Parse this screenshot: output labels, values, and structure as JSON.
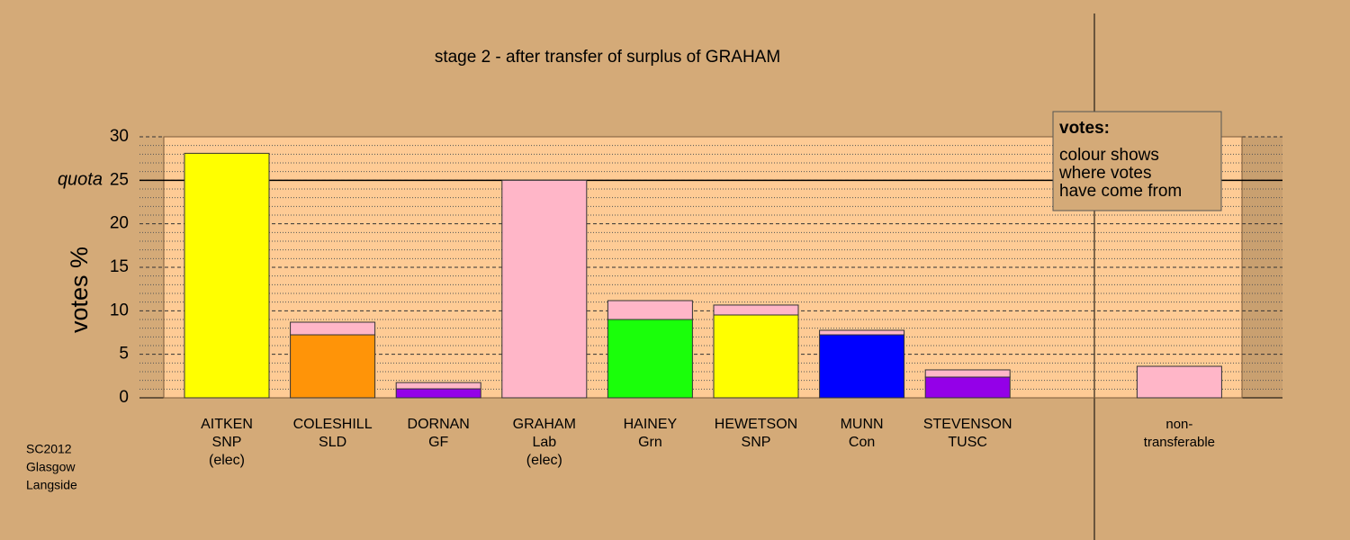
{
  "chart_data": {
    "type": "bar",
    "stacked": true,
    "title": "stage 2 - after transfer of surplus of GRAHAM",
    "y_label": "votes %",
    "categories": [
      [
        "AITKEN",
        "SNP",
        "(elec)"
      ],
      [
        "COLESHILL",
        "SLD"
      ],
      [
        "DORNAN",
        "GF"
      ],
      [
        "GRAHAM",
        "Lab",
        "(elec)"
      ],
      [
        "HAINEY",
        "Grn"
      ],
      [
        "HEWETSON",
        "SNP"
      ],
      [
        "MUNN",
        "Con"
      ],
      [
        "STEVENSON",
        "TUSC"
      ],
      null,
      [
        "non-",
        "transferable"
      ]
    ],
    "series": [
      {
        "colors": [
          "#ffff00",
          "#ff9408",
          "#9400e8",
          "#ffb6c8",
          "#1aff0a",
          "#ffff00",
          "#0000ff",
          "#9400e8",
          null,
          null
        ],
        "values": [
          28.1,
          7.24,
          1.03,
          25,
          9.0,
          9.52,
          7.24,
          2.38,
          null,
          null
        ]
      },
      {
        "color": "#ffb6c8",
        "values": [
          null,
          1.45,
          0.72,
          null,
          2.17,
          1.14,
          0.52,
          0.83,
          null,
          3.62
        ]
      }
    ],
    "ylim": [
      0,
      30
    ],
    "yticks": [
      0,
      5,
      10,
      15,
      20,
      25,
      30
    ],
    "minor_yticks": [
      1,
      2,
      3,
      4,
      6,
      7,
      8,
      9,
      11,
      12,
      13,
      14,
      16,
      17,
      18,
      19,
      21,
      22,
      23,
      24,
      26,
      27,
      28,
      29
    ],
    "quota": {
      "label": "quota",
      "value": 25
    },
    "legend": {
      "title": "votes:",
      "lines": [
        "colour shows",
        "where votes",
        "have come from"
      ]
    },
    "footnote": [
      "SC2012",
      "Glasgow",
      "Langside"
    ]
  }
}
